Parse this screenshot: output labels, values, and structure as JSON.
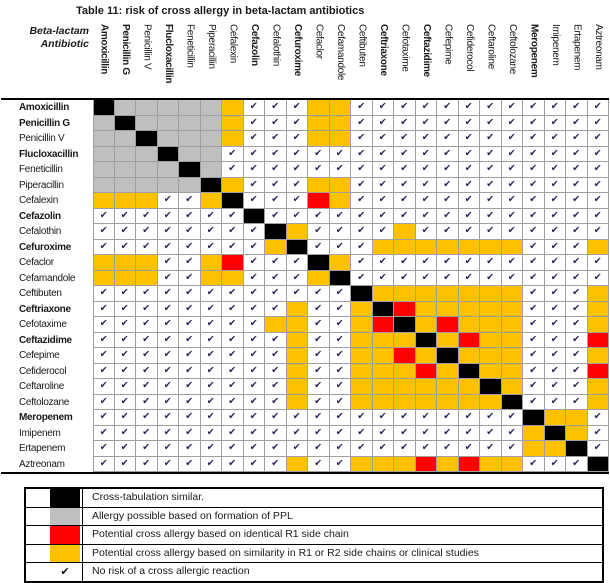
{
  "title": "Table 11: risk of cross allergy in beta-lactam antibiotics",
  "corner": {
    "line1": "Beta-lactam",
    "line2": "Antibiotic"
  },
  "check_glyph": "✔",
  "colors": {
    "black": "#000000",
    "gray": "#bfbfbf",
    "red": "#ff0000",
    "orange": "#ffc000",
    "checkmark": "#23235a",
    "grid_line": "#a0a0a0"
  },
  "antibiotics": [
    {
      "name": "Amoxicillin",
      "bold": true
    },
    {
      "name": "Penicillin G",
      "bold": true
    },
    {
      "name": "Penicillin V",
      "bold": false
    },
    {
      "name": "Flucloxacillin",
      "bold": true
    },
    {
      "name": "Feneticillin",
      "bold": false
    },
    {
      "name": "Piperacillin",
      "bold": false
    },
    {
      "name": "Cefalexin",
      "bold": false
    },
    {
      "name": "Cefazolin",
      "bold": true
    },
    {
      "name": "Cefalothin",
      "bold": false
    },
    {
      "name": "Cefuroxime",
      "bold": true
    },
    {
      "name": "Cefaclor",
      "bold": false
    },
    {
      "name": "Cefamandole",
      "bold": false
    },
    {
      "name": "Ceftibuten",
      "bold": false
    },
    {
      "name": "Ceftriaxone",
      "bold": true
    },
    {
      "name": "Cefotaxime",
      "bold": false
    },
    {
      "name": "Ceftazidime",
      "bold": true
    },
    {
      "name": "Cefepime",
      "bold": false
    },
    {
      "name": "Cefiderocol",
      "bold": false
    },
    {
      "name": "Ceftaroline",
      "bold": false
    },
    {
      "name": "Ceftolozane",
      "bold": false
    },
    {
      "name": "Meropenem",
      "bold": true
    },
    {
      "name": "Imipenem",
      "bold": false
    },
    {
      "name": "Ertapenem",
      "bold": false
    },
    {
      "name": "Aztreonam",
      "bold": false
    }
  ],
  "cell_code_meaning": {
    "K": "black: cross-tabulation similar",
    "G": "gray: allergy possible based on formation of PPL",
    "R": "red: identical R1 side chain",
    "O": "orange: similar R1/R2 side chains or clinical studies",
    "C": "checkmark: no risk"
  },
  "matrix": [
    "KGGGGGOCCCOOCCCCCCCCCCCC",
    "GKGGGGOCCCOOCCCCCCCCCCCC",
    "GGKGGGOCCCOOCCCCCCCCCCCC",
    "GGGKGGCCCCCCCCCCCCCCCCCC",
    "GGGGKGCCCCCCCCCCCCCCCCCC",
    "GGGGGKOCCCOOCCCCCCCCCCCC",
    "OOOCCOKCCCROCCCCCCCCCCCC",
    "CCCCCCCKCCCCCCCCCCCCCCCC",
    "CCCCCCCCKOCCCCOCCCCCCCCC",
    "CCCCCCCCOKCCCOOOOOOOCCCO",
    "OOOCCORCCCKOCCCCCCCCCCCC",
    "OOOCCOOCCCOKCCCCCCCCCCCC",
    "CCCCCCCCCCCCKOOOOOOOCCCO",
    "CCCCCCCCCOCCOKROOOOOCCCO",
    "CCCCCCCCOOCCORKOROOOCCCO",
    "CCCCCCCCCOCCOOOKOROOCCCR",
    "CCCCCCCCCOCCOOROKOOOCCCO",
    "CCCCCCCCCOCCOOOROKOOCCCR",
    "CCCCCCCCCOCCOOOOOOKOCCCO",
    "CCCCCCCCCOCCOOOOOOOKCCCO",
    "CCCCCCCCCCCCCCCCCCCCKOOC",
    "CCCCCCCCCCCCCCCCCCCCOKOC",
    "CCCCCCCCCCCCCCCCCCCCOOKC",
    "CCCCCCCCCOCCOOOROROOCCCK"
  ],
  "legend": [
    {
      "swatch": "black",
      "label": "Cross-tabulation similar."
    },
    {
      "swatch": "gray",
      "label": "Allergy possible based on formation of PPL"
    },
    {
      "swatch": "red",
      "label": "Potential cross allergy based on identical R1 side chain"
    },
    {
      "swatch": "orange",
      "label": "Potential cross allergy based on similarity in R1 or R2 side chains or clinical studies"
    },
    {
      "swatch": "check",
      "label": "No risk of a cross allergic reaction"
    }
  ]
}
